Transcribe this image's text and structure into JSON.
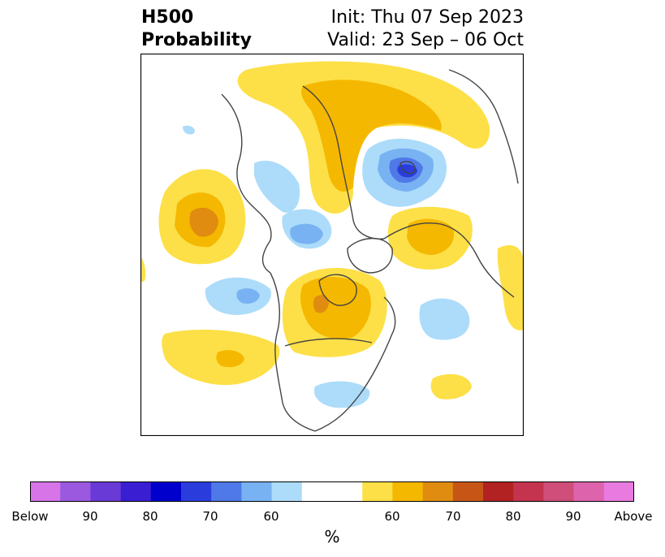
{
  "header": {
    "title_line1": "H500",
    "title_line2": "Probability",
    "init": "Init: Thu 07 Sep 2023",
    "valid": "Valid: 23 Sep – 06 Oct"
  },
  "colorbar": {
    "unit": "%",
    "below_colors": [
      "#d674e8",
      "#9b59e0",
      "#6a3ad6",
      "#3a1ed2",
      "#0000cc",
      "#2a3ddc",
      "#4f78e8",
      "#78b2f2",
      "#acdcfa"
    ],
    "neutral_color": "#ffffff",
    "above_colors": [
      "#fde047",
      "#f5b800",
      "#e08c10",
      "#c75616",
      "#b22222",
      "#c4344e",
      "#cf4e7a",
      "#de63ad",
      "#e87ae0"
    ],
    "tick_labels": [
      "Below",
      "90",
      "80",
      "70",
      "60",
      "60",
      "70",
      "80",
      "90",
      "Above"
    ]
  },
  "map": {
    "colors": {
      "light_blue": "#acdcfa",
      "mid_blue": "#78b2f2",
      "blue": "#4f78e8",
      "dark_blue": "#2a3ddc",
      "yellow": "#fde047",
      "orange": "#f5b800",
      "dark_orange": "#e08c10",
      "coast": "#444444"
    }
  }
}
